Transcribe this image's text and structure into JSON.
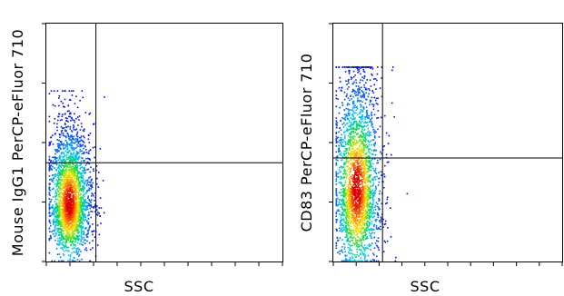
{
  "chart_data": [
    {
      "type": "scatter",
      "title": "",
      "xlabel": "SSC",
      "ylabel": "Mouse IgG1 PerCP-eFluor 710",
      "xlim": [
        0,
        1
      ],
      "ylim": [
        0,
        1
      ],
      "grid": false,
      "color_scale": "density",
      "gate": {
        "x": 0.21,
        "y": 0.415
      },
      "population": {
        "x_center": 0.095,
        "y_center": 0.25,
        "x_spread": 0.04,
        "y_spread": 0.11,
        "y_max": 0.72
      }
    },
    {
      "type": "scatter",
      "title": "",
      "xlabel": "SSC",
      "ylabel": "CD83 PerCP-eFluor 710",
      "xlim": [
        0,
        1
      ],
      "ylim": [
        0,
        1
      ],
      "grid": false,
      "color_scale": "density",
      "gate": {
        "x": 0.215,
        "y": 0.435
      },
      "population": {
        "x_center": 0.1,
        "y_center": 0.31,
        "x_spread": 0.045,
        "y_spread": 0.16,
        "y_max": 0.82
      }
    }
  ]
}
